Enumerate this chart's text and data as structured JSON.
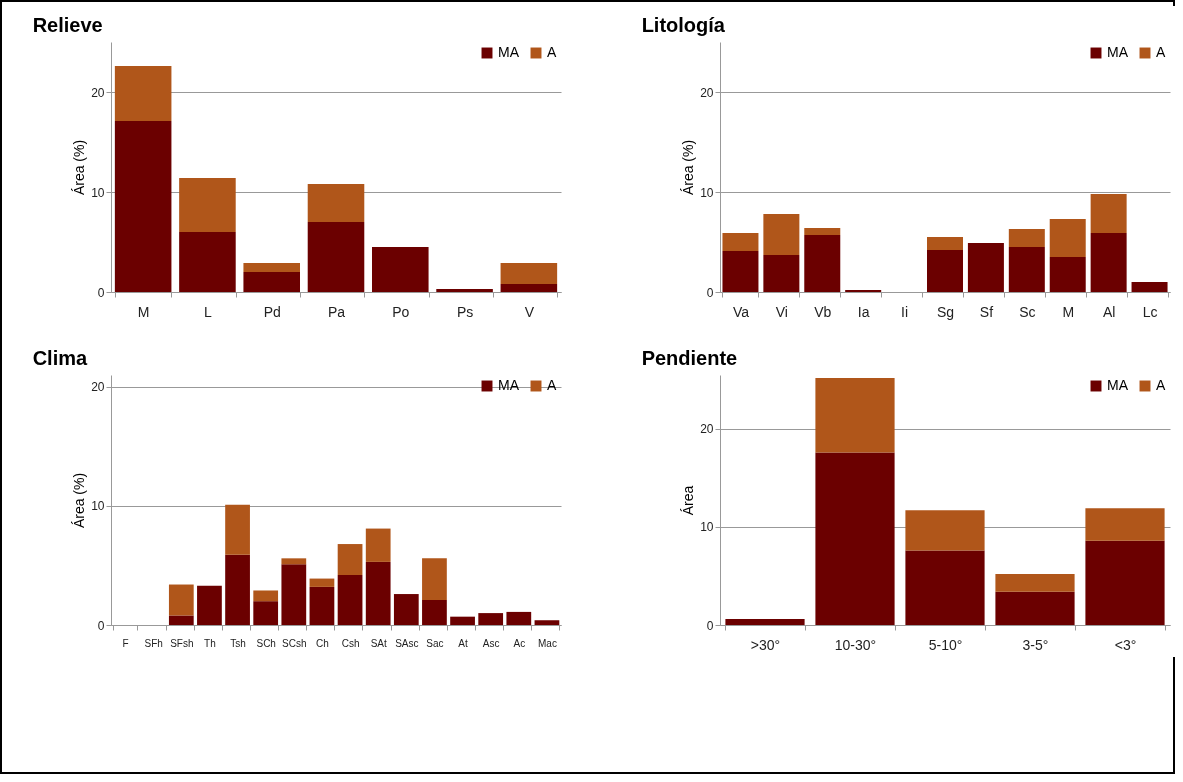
{
  "chart_data": [
    {
      "type": "bar",
      "title": "Relieve",
      "ylabel": "Área (%)",
      "categories": [
        "M",
        "L",
        "Pd",
        "Pa",
        "Po",
        "Ps",
        "V"
      ],
      "stacked": true,
      "legend": "top right",
      "grid": "y",
      "ylim": [
        0,
        25
      ],
      "yticks": [
        0,
        10,
        20
      ],
      "series": [
        {
          "name": "MA",
          "color": "#6b0000",
          "values": [
            17.1,
            6.0,
            2.0,
            7.0,
            4.5,
            0.3,
            0.8
          ]
        },
        {
          "name": "A",
          "color": "#b0561a",
          "values": [
            5.5,
            5.4,
            0.9,
            3.8,
            0,
            0,
            2.1
          ]
        }
      ]
    },
    {
      "type": "bar",
      "title": "Litología",
      "ylabel": "Área (%)",
      "categories": [
        "Va",
        "Vi",
        "Vb",
        "Ia",
        "Ii",
        "Sg",
        "Sf",
        "Sc",
        "M",
        "Al",
        "Lc"
      ],
      "stacked": true,
      "legend": "top right",
      "grid": "y",
      "ylim": [
        0,
        25
      ],
      "yticks": [
        0,
        10,
        20
      ],
      "series": [
        {
          "name": "MA",
          "color": "#6b0000",
          "values": [
            4.1,
            3.7,
            5.7,
            0.2,
            0,
            4.2,
            4.9,
            4.5,
            3.5,
            5.9,
            1.0
          ]
        },
        {
          "name": "A",
          "color": "#b0561a",
          "values": [
            1.8,
            4.1,
            0.7,
            0,
            0,
            1.3,
            0,
            1.8,
            3.8,
            3.9,
            0
          ]
        }
      ]
    },
    {
      "type": "bar",
      "title": "Clima",
      "ylabel": "Área (%)",
      "categories": [
        "F",
        "SFh",
        "SFsh",
        "Th",
        "Tsh",
        "SCh",
        "SCsh",
        "Ch",
        "Csh",
        "SAt",
        "SAsc",
        "Sac",
        "At",
        "Asc",
        "Ac",
        "Mac"
      ],
      "stacked": true,
      "legend": "top right",
      "grid": "y",
      "ylim": [
        0,
        21
      ],
      "yticks": [
        0,
        10,
        20
      ],
      "series": [
        {
          "name": "MA",
          "color": "#6b0000",
          "values": [
            0,
            0,
            0.8,
            3.3,
            5.9,
            2.0,
            5.1,
            3.2,
            4.2,
            5.3,
            2.6,
            2.1,
            0.7,
            1.0,
            1.1,
            0.4
          ]
        },
        {
          "name": "A",
          "color": "#b0561a",
          "values": [
            0,
            0,
            2.6,
            0,
            4.2,
            0.9,
            0.5,
            0.7,
            2.6,
            2.8,
            0,
            3.5,
            0,
            0,
            0,
            0
          ]
        }
      ]
    },
    {
      "type": "bar",
      "title": "Pendiente",
      "ylabel": "Área",
      "categories": [
        ">30°",
        "10-30°",
        "5-10°",
        "3-5°",
        "<3°"
      ],
      "stacked": true,
      "legend": "top right",
      "grid": "y",
      "ylim": [
        0,
        25.5
      ],
      "yticks": [
        0,
        10,
        20
      ],
      "series": [
        {
          "name": "MA",
          "color": "#6b0000",
          "values": [
            0.6,
            17.6,
            7.6,
            3.4,
            8.6
          ]
        },
        {
          "name": "A",
          "color": "#b0561a",
          "values": [
            0,
            7.6,
            4.1,
            1.8,
            3.3
          ]
        }
      ]
    }
  ]
}
